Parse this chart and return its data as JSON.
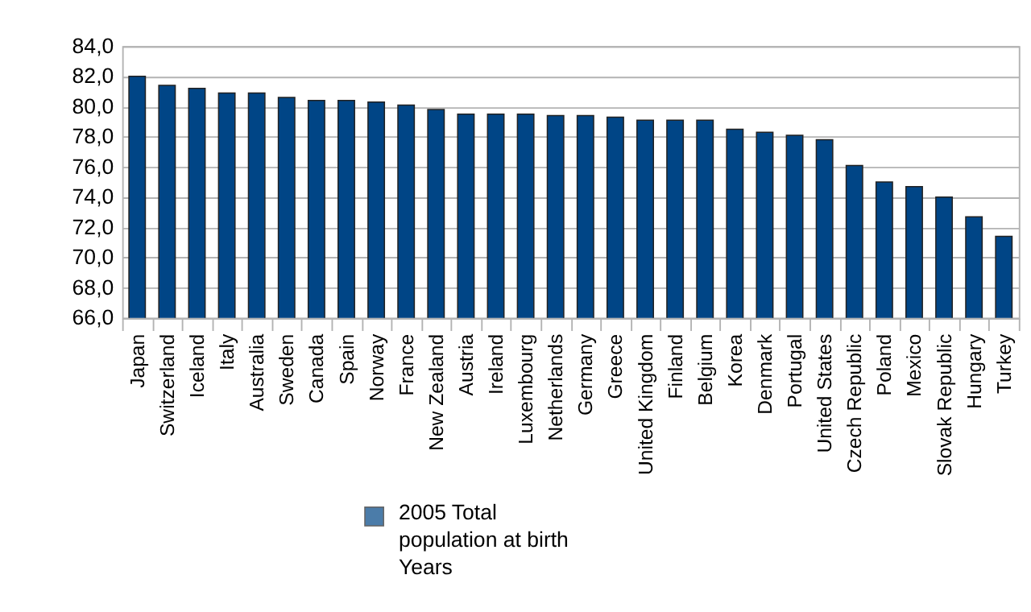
{
  "chart_data": {
    "type": "bar",
    "categories": [
      "Japan",
      "Switzerland",
      "Iceland",
      "Italy",
      "Australia",
      "Sweden",
      "Canada",
      "Spain",
      "Norway",
      "France",
      "New Zealand",
      "Austria",
      "Ireland",
      "Luxembourg",
      "Netherlands",
      "Germany",
      "Greece",
      "United Kingdom",
      "Finland",
      "Belgium",
      "Korea",
      "Denmark",
      "Portugal",
      "United States",
      "Czech Republic",
      "Poland",
      "Mexico",
      "Slovak Republic",
      "Hungary",
      "Turkey"
    ],
    "series": [
      {
        "name": "2005 Total\npopulation at birth\nYears",
        "color": "#004586",
        "values": [
          82.0,
          81.4,
          81.2,
          80.9,
          80.9,
          80.6,
          80.4,
          80.4,
          80.3,
          80.1,
          79.8,
          79.5,
          79.5,
          79.5,
          79.4,
          79.4,
          79.3,
          79.1,
          79.1,
          79.1,
          78.5,
          78.3,
          78.1,
          77.8,
          76.1,
          75.0,
          74.7,
          74.0,
          72.7,
          71.4
        ]
      }
    ],
    "ylim": [
      66,
      84
    ],
    "yticks": [
      {
        "value": 66,
        "label": "66,0"
      },
      {
        "value": 68,
        "label": "68,0"
      },
      {
        "value": 70,
        "label": "70,0"
      },
      {
        "value": 72,
        "label": "72,0"
      },
      {
        "value": 74,
        "label": "74,0"
      },
      {
        "value": 76,
        "label": "76,0"
      },
      {
        "value": 78,
        "label": "78,0"
      },
      {
        "value": 80,
        "label": "80,0"
      },
      {
        "value": 82,
        "label": "82,0"
      },
      {
        "value": 84,
        "label": "84,0"
      }
    ],
    "grid": "y",
    "legend": "bottom"
  }
}
